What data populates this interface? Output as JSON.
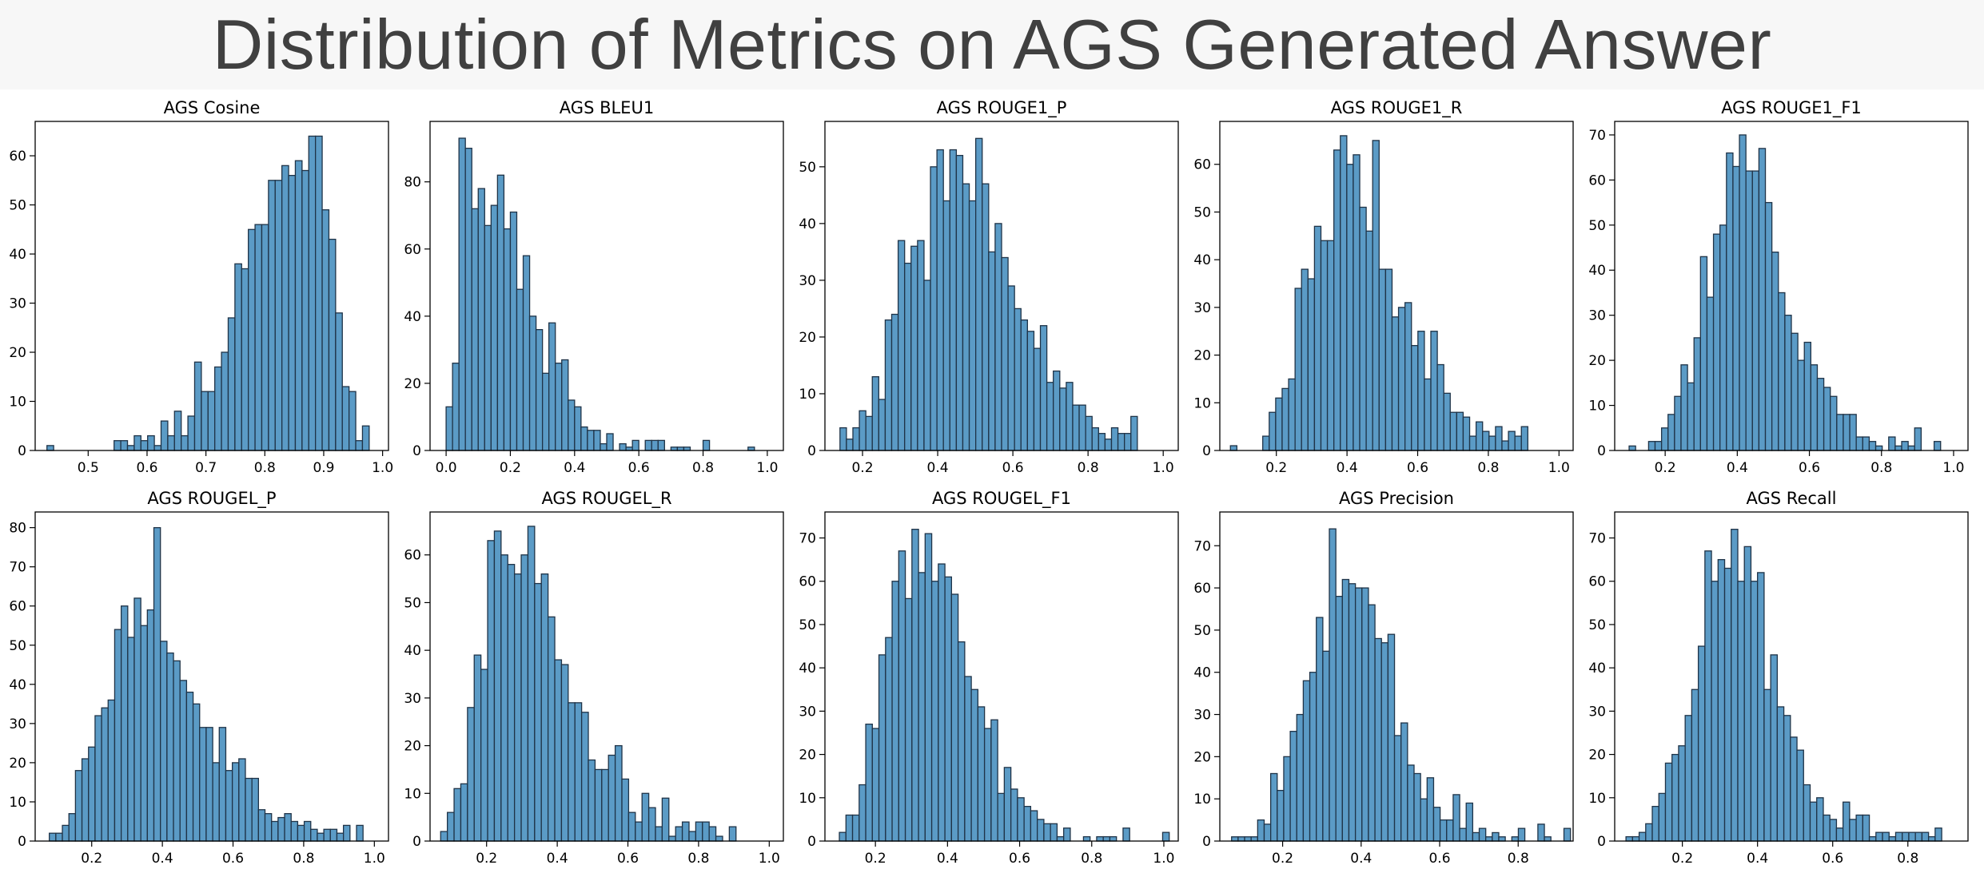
{
  "header": {
    "title": "Distribution of Metrics on AGS Generated Answer"
  },
  "colors": {
    "bar_fill": "#5b9bc6",
    "bar_stroke": "#1f3347",
    "axis": "#000000",
    "page_bg": "#ffffff",
    "header_bg": "#f7f7f7",
    "title_text": "#404040"
  },
  "chart_data": [
    {
      "type": "bar",
      "title": "AGS Cosine",
      "xlim": [
        0.41,
        1.01
      ],
      "ylim": [
        0,
        67
      ],
      "xticks": [
        0.5,
        0.6,
        0.7,
        0.8,
        0.9,
        1.0
      ],
      "xtick_labels": [
        "0.5",
        "0.6",
        "0.7",
        "0.8",
        "0.9",
        "1.0"
      ],
      "yticks": [
        0,
        10,
        20,
        30,
        40,
        50,
        60
      ],
      "bin_start": 0.43,
      "bin_width": 0.0114,
      "values": [
        1,
        0,
        0,
        0,
        0,
        0,
        0,
        0,
        0,
        0,
        2,
        2,
        1,
        3,
        2,
        3,
        1,
        6,
        3,
        8,
        3,
        7,
        18,
        12,
        12,
        17,
        20,
        27,
        38,
        37,
        45,
        46,
        46,
        55,
        55,
        58,
        56,
        59,
        57,
        64,
        64,
        49,
        43,
        28,
        13,
        12,
        2,
        5
      ]
    },
    {
      "type": "bar",
      "title": "AGS BLEU1",
      "xlim": [
        -0.05,
        1.05
      ],
      "ylim": [
        0,
        98
      ],
      "xticks": [
        0,
        0.2,
        0.4,
        0.6,
        0.8,
        1.0
      ],
      "xtick_labels": [
        "0.0",
        "0.2",
        "0.4",
        "0.6",
        "0.8",
        "1.0"
      ],
      "yticks": [
        0,
        20,
        40,
        60,
        80
      ],
      "bin_start": 0.0,
      "bin_width": 0.02,
      "values": [
        13,
        26,
        93,
        90,
        72,
        78,
        67,
        73,
        82,
        66,
        71,
        48,
        58,
        40,
        36,
        23,
        38,
        26,
        27,
        15,
        13,
        7,
        6,
        6,
        2,
        5,
        0,
        2,
        1,
        3,
        0,
        3,
        3,
        3,
        0,
        1,
        1,
        1,
        0,
        0,
        3,
        0,
        0,
        0,
        0,
        0,
        0,
        1,
        0,
        0
      ]
    },
    {
      "type": "bar",
      "title": "AGS ROUGE1_P",
      "xlim": [
        0.1,
        1.04
      ],
      "ylim": [
        0,
        58
      ],
      "xticks": [
        0.2,
        0.4,
        0.6,
        0.8,
        1.0
      ],
      "xtick_labels": [
        "0.2",
        "0.4",
        "0.6",
        "0.8",
        "1.0"
      ],
      "yticks": [
        0,
        10,
        20,
        30,
        40,
        50
      ],
      "bin_start": 0.14,
      "bin_width": 0.0172,
      "values": [
        4,
        2,
        4,
        7,
        6,
        13,
        9,
        23,
        24,
        37,
        33,
        36,
        37,
        30,
        50,
        53,
        44,
        53,
        52,
        47,
        44,
        55,
        47,
        35,
        40,
        34,
        29,
        25,
        23,
        21,
        18,
        22,
        12,
        14,
        11,
        12,
        8,
        8,
        6,
        4,
        3,
        2,
        4,
        3,
        3,
        6
      ]
    },
    {
      "type": "bar",
      "title": "AGS ROUGE1_R",
      "xlim": [
        0.04,
        1.04
      ],
      "ylim": [
        0,
        69
      ],
      "xticks": [
        0.2,
        0.4,
        0.6,
        0.8,
        1.0
      ],
      "xtick_labels": [
        "0.2",
        "0.4",
        "0.6",
        "0.8",
        "1.0"
      ],
      "yticks": [
        0,
        10,
        20,
        30,
        40,
        50,
        60
      ],
      "bin_start": 0.07,
      "bin_width": 0.0183,
      "values": [
        1,
        0,
        0,
        0,
        0,
        3,
        8,
        11,
        13,
        15,
        34,
        38,
        36,
        47,
        44,
        44,
        63,
        66,
        60,
        62,
        51,
        46,
        65,
        38,
        38,
        28,
        30,
        31,
        22,
        25,
        15,
        25,
        18,
        12,
        8,
        8,
        7,
        3,
        6,
        4,
        3,
        5,
        2,
        4,
        3,
        5
      ]
    },
    {
      "type": "bar",
      "title": "AGS ROUGE1_F1",
      "xlim": [
        0.06,
        1.04
      ],
      "ylim": [
        0,
        73
      ],
      "xticks": [
        0.2,
        0.4,
        0.6,
        0.8,
        1.0
      ],
      "xtick_labels": [
        "0.2",
        "0.4",
        "0.6",
        "0.8",
        "1.0"
      ],
      "yticks": [
        0,
        10,
        20,
        30,
        40,
        50,
        60,
        70
      ],
      "bin_start": 0.1,
      "bin_width": 0.018,
      "values": [
        1,
        0,
        0,
        2,
        2,
        5,
        8,
        12,
        19,
        15,
        25,
        43,
        34,
        48,
        50,
        66,
        63,
        70,
        62,
        62,
        67,
        55,
        44,
        35,
        30,
        26,
        20,
        24,
        19,
        16,
        14,
        12,
        8,
        8,
        8,
        3,
        3,
        2,
        1,
        0,
        3,
        1,
        2,
        1,
        5,
        0,
        0,
        2
      ]
    },
    {
      "type": "bar",
      "title": "AGS ROUGEL_P",
      "xlim": [
        0.04,
        1.04
      ],
      "ylim": [
        0,
        84
      ],
      "xticks": [
        0.2,
        0.4,
        0.6,
        0.8,
        1.0
      ],
      "xtick_labels": [
        "0.2",
        "0.4",
        "0.6",
        "0.8",
        "1.0"
      ],
      "yticks": [
        0,
        10,
        20,
        30,
        40,
        50,
        60,
        70,
        80
      ],
      "bin_start": 0.08,
      "bin_width": 0.0185,
      "values": [
        2,
        2,
        4,
        7,
        18,
        21,
        24,
        32,
        34,
        36,
        54,
        60,
        52,
        62,
        55,
        59,
        80,
        51,
        48,
        46,
        41,
        38,
        35,
        29,
        29,
        20,
        29,
        18,
        20,
        21,
        16,
        16,
        8,
        7,
        5,
        6,
        7,
        5,
        4,
        5,
        3,
        2,
        3,
        3,
        2,
        4,
        0,
        4
      ]
    },
    {
      "type": "bar",
      "title": "AGS ROUGEL_R",
      "xlim": [
        0.04,
        1.04
      ],
      "ylim": [
        0,
        69
      ],
      "xticks": [
        0.2,
        0.4,
        0.6,
        0.8,
        1.0
      ],
      "xtick_labels": [
        "0.2",
        "0.4",
        "0.6",
        "0.8",
        "1.0"
      ],
      "yticks": [
        0,
        10,
        20,
        30,
        40,
        50,
        60
      ],
      "bin_start": 0.07,
      "bin_width": 0.019,
      "values": [
        2,
        6,
        11,
        12,
        28,
        39,
        36,
        63,
        65,
        60,
        58,
        56,
        60,
        66,
        54,
        56,
        47,
        38,
        37,
        29,
        29,
        27,
        17,
        15,
        15,
        18,
        20,
        13,
        6,
        4,
        10,
        7,
        3,
        9,
        1,
        3,
        4,
        2,
        4,
        4,
        3,
        1,
        0,
        3
      ]
    },
    {
      "type": "bar",
      "title": "AGS ROUGEL_F1",
      "xlim": [
        0.06,
        1.04
      ],
      "ylim": [
        0,
        76
      ],
      "xticks": [
        0.2,
        0.4,
        0.6,
        0.8,
        1.0
      ],
      "xtick_labels": [
        "0.2",
        "0.4",
        "0.6",
        "0.8",
        "1.0"
      ],
      "yticks": [
        0,
        10,
        20,
        30,
        40,
        50,
        60,
        70
      ],
      "bin_start": 0.1,
      "bin_width": 0.0183,
      "values": [
        2,
        6,
        6,
        13,
        27,
        26,
        43,
        47,
        60,
        67,
        56,
        72,
        62,
        71,
        60,
        64,
        61,
        57,
        46,
        38,
        35,
        31,
        26,
        28,
        11,
        17,
        12,
        10,
        8,
        7,
        5,
        4,
        4,
        1,
        3,
        0,
        0,
        1,
        0,
        1,
        1,
        1,
        0,
        3,
        0,
        0,
        0,
        0,
        0,
        2
      ]
    },
    {
      "type": "bar",
      "title": "AGS Precision",
      "xlim": [
        0.04,
        0.94
      ],
      "ylim": [
        0,
        78
      ],
      "xticks": [
        0.2,
        0.4,
        0.6,
        0.8
      ],
      "xtick_labels": [
        "0.2",
        "0.4",
        "0.6",
        "0.8"
      ],
      "yticks": [
        0,
        10,
        20,
        30,
        40,
        50,
        60,
        70
      ],
      "bin_start": 0.07,
      "bin_width": 0.0166,
      "values": [
        1,
        1,
        1,
        1,
        5,
        4,
        16,
        12,
        20,
        26,
        30,
        38,
        40,
        53,
        45,
        74,
        58,
        62,
        61,
        60,
        60,
        56,
        48,
        47,
        49,
        25,
        28,
        18,
        16,
        10,
        15,
        8,
        5,
        5,
        11,
        3,
        9,
        2,
        3,
        1,
        2,
        1,
        0,
        1,
        3,
        0,
        0,
        4,
        1,
        0,
        0,
        3
      ]
    },
    {
      "type": "bar",
      "title": "AGS Recall",
      "xlim": [
        0.02,
        0.96
      ],
      "ylim": [
        0,
        76
      ],
      "xticks": [
        0.2,
        0.4,
        0.6,
        0.8
      ],
      "xtick_labels": [
        "0.2",
        "0.4",
        "0.6",
        "0.8"
      ],
      "yticks": [
        0,
        10,
        20,
        30,
        40,
        50,
        60,
        70
      ],
      "bin_start": 0.05,
      "bin_width": 0.0175,
      "values": [
        1,
        1,
        2,
        4,
        8,
        11,
        18,
        20,
        22,
        29,
        35,
        45,
        67,
        60,
        65,
        63,
        72,
        60,
        68,
        60,
        62,
        35,
        43,
        31,
        29,
        24,
        21,
        13,
        9,
        10,
        6,
        5,
        3,
        9,
        5,
        6,
        6,
        1,
        2,
        2,
        1,
        2,
        2,
        2,
        2,
        2,
        1,
        3
      ]
    }
  ]
}
